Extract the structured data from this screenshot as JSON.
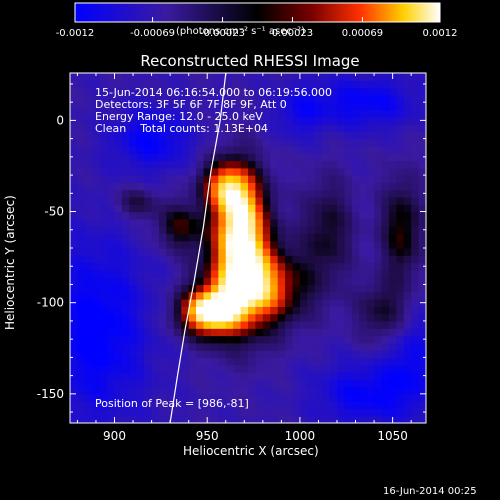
{
  "colorbar": {
    "tick_labels": [
      "-0.0012",
      "-0.00069",
      "-0.00023",
      "0.00023",
      "0.00069",
      "0.0012"
    ],
    "units_label": "(photons cm⁻² s⁻¹ asec⁻²)",
    "range": [
      -0.0012,
      0.0012
    ],
    "colors": [
      "#0000ff",
      "#3a1aa0",
      "#000000",
      "#7a0000",
      "#ff3000",
      "#ffd000",
      "#ffffff"
    ]
  },
  "chart_data": {
    "type": "heatmap",
    "title": "Reconstructed RHESSI Image",
    "xlabel": "Heliocentric X (arcsec)",
    "ylabel": "Heliocentric Y (arcsec)",
    "xlim": [
      876,
      1068
    ],
    "ylim": [
      -166,
      26
    ],
    "x_ticks": [
      900,
      950,
      1000,
      1050
    ],
    "y_ticks": [
      0,
      -50,
      -100,
      -150
    ],
    "x_tick_labels": [
      "900",
      "950",
      "1000",
      "1050"
    ],
    "y_tick_labels": [
      "0",
      "-50",
      "-100",
      "-150"
    ],
    "annotations": [
      "15-Jun-2014 06:16:54.000 to 06:19:56.000",
      "Detectors: 3F 5F 6F 7F 8F 9F, Att 0",
      "Energy Range: 12.0 - 25.0 keV",
      "Clean    Total counts: 1.13E+04"
    ],
    "peak_label": "Position of Peak = [986,-81]",
    "peak": [
      986,
      -81
    ],
    "limb": [
      [
        930,
        -166
      ],
      [
        934,
        -140
      ],
      [
        938,
        -115
      ],
      [
        943,
        -88
      ],
      [
        948,
        -58
      ],
      [
        952,
        -28
      ],
      [
        957,
        0
      ],
      [
        960,
        26
      ]
    ],
    "sources": [
      {
        "x": 950,
        "y": -105,
        "sx": 11,
        "sy": 9,
        "amp": 1.0
      },
      {
        "x": 968,
        "y": -88,
        "sx": 14,
        "sy": 22,
        "amp": 0.78
      },
      {
        "x": 968,
        "y": -52,
        "sx": 10,
        "sy": 20,
        "amp": 0.92
      },
      {
        "x": 958,
        "y": -35,
        "sx": 9,
        "sy": 9,
        "amp": 0.55
      },
      {
        "x": 985,
        "y": -92,
        "sx": 16,
        "sy": 14,
        "amp": 0.5
      },
      {
        "x": 1015,
        "y": -60,
        "sx": 10,
        "sy": 20,
        "amp": 0.35
      },
      {
        "x": 1055,
        "y": -60,
        "sx": 8,
        "sy": 20,
        "amp": 0.45
      },
      {
        "x": 1045,
        "y": -105,
        "sx": 10,
        "sy": 12,
        "amp": 0.35
      },
      {
        "x": 935,
        "y": -58,
        "sx": 9,
        "sy": 9,
        "amp": 0.42
      },
      {
        "x": 912,
        "y": -45,
        "sx": 8,
        "sy": 6,
        "amp": 0.3
      }
    ],
    "negative_regions": [
      {
        "x": 890,
        "y": -115,
        "sx": 20,
        "sy": 35,
        "amp": -0.35
      },
      {
        "x": 920,
        "y": -10,
        "sx": 15,
        "sy": 12,
        "amp": -0.3
      },
      {
        "x": 1035,
        "y": 10,
        "sx": 20,
        "sy": 10,
        "amp": -0.3
      },
      {
        "x": 1035,
        "y": -150,
        "sx": 18,
        "sy": 12,
        "amp": -0.3
      },
      {
        "x": 1060,
        "y": -130,
        "sx": 10,
        "sy": 20,
        "amp": -0.25
      },
      {
        "x": 1000,
        "y": 5,
        "sx": 10,
        "sy": 10,
        "amp": -0.2
      }
    ]
  },
  "footer": {
    "timestamp": "16-Jun-2014 00:25"
  }
}
